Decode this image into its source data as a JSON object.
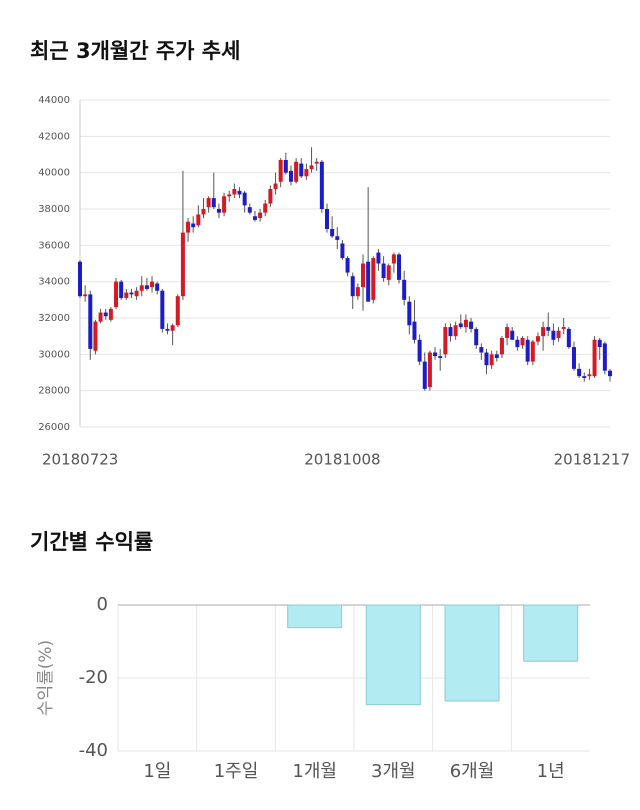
{
  "chart_data": [
    {
      "type": "candlestick",
      "title": "최근 3개월간 주가 추세",
      "categories": [
        "20180723",
        null,
        null,
        null,
        null,
        null,
        null,
        null,
        null,
        null,
        null,
        null,
        null,
        null,
        null,
        null,
        null,
        null,
        null,
        null,
        null,
        null,
        null,
        null,
        null,
        null,
        null,
        null,
        null,
        null,
        null,
        null,
        null,
        null,
        null,
        null,
        null,
        null,
        null,
        null,
        null,
        null,
        null,
        null,
        null,
        null,
        null,
        null,
        null,
        null,
        null,
        "20181008",
        null,
        null,
        null,
        null,
        null,
        null,
        null,
        null,
        null,
        null,
        null,
        null,
        null,
        null,
        null,
        null,
        null,
        null,
        null,
        null,
        null,
        null,
        null,
        null,
        null,
        null,
        null,
        null,
        null,
        null,
        null,
        null,
        null,
        null,
        null,
        null,
        null,
        null,
        null,
        null,
        null,
        null,
        null,
        null,
        null,
        null,
        null,
        null,
        null,
        null,
        null,
        "20181217"
      ],
      "candles": [
        [
          35100,
          35200,
          33100,
          33200
        ],
        [
          33200,
          33800,
          32900,
          33300
        ],
        [
          33300,
          33500,
          29700,
          30300
        ],
        [
          30200,
          31900,
          30000,
          31800
        ],
        [
          31800,
          32500,
          31700,
          32300
        ],
        [
          32300,
          32500,
          31900,
          32100
        ],
        [
          31900,
          32600,
          31800,
          32500
        ],
        [
          32600,
          34200,
          32500,
          34000
        ],
        [
          34000,
          34100,
          33000,
          33100
        ],
        [
          33100,
          33600,
          33000,
          33400
        ],
        [
          33400,
          33600,
          33100,
          33300
        ],
        [
          33200,
          33700,
          33000,
          33500
        ],
        [
          33500,
          34300,
          33200,
          33800
        ],
        [
          33800,
          34200,
          33500,
          33600
        ],
        [
          33700,
          34300,
          33400,
          34000
        ],
        [
          33900,
          34000,
          33300,
          33500
        ],
        [
          33500,
          33600,
          31200,
          31400
        ],
        [
          31400,
          31700,
          31100,
          31300
        ],
        [
          31300,
          31700,
          30500,
          31600
        ],
        [
          31600,
          33300,
          31500,
          33200
        ],
        [
          33200,
          40100,
          33000,
          36700
        ],
        [
          36700,
          37500,
          36200,
          37300
        ],
        [
          37200,
          37600,
          36700,
          37000
        ],
        [
          37100,
          38200,
          37000,
          37700
        ],
        [
          37700,
          38600,
          37500,
          38000
        ],
        [
          38100,
          38700,
          37800,
          38600
        ],
        [
          38600,
          40000,
          38000,
          38100
        ],
        [
          38000,
          38300,
          37500,
          37800
        ],
        [
          37800,
          38900,
          37600,
          38700
        ],
        [
          38700,
          39000,
          38400,
          38800
        ],
        [
          38800,
          39400,
          38600,
          39100
        ],
        [
          39000,
          39200,
          38600,
          38800
        ],
        [
          38900,
          39000,
          37800,
          38200
        ],
        [
          38100,
          38300,
          37700,
          37800
        ],
        [
          37600,
          37900,
          37300,
          37400
        ],
        [
          37500,
          38000,
          37300,
          37800
        ],
        [
          37800,
          38500,
          37600,
          38300
        ],
        [
          38300,
          39300,
          38100,
          39100
        ],
        [
          39100,
          40000,
          38800,
          39400
        ],
        [
          39500,
          40800,
          39200,
          40700
        ],
        [
          40700,
          41100,
          39900,
          40000
        ],
        [
          40100,
          40400,
          39300,
          39500
        ],
        [
          39500,
          40800,
          39400,
          40600
        ],
        [
          40500,
          40800,
          39700,
          39800
        ],
        [
          39800,
          40500,
          39600,
          40200
        ],
        [
          40200,
          41400,
          40000,
          40400
        ],
        [
          40500,
          40800,
          40100,
          40600
        ],
        [
          40600,
          40700,
          37800,
          38000
        ],
        [
          38000,
          38300,
          36700,
          36900
        ],
        [
          36900,
          37600,
          36400,
          36500
        ],
        [
          36500,
          37000,
          35800,
          36300
        ],
        [
          36100,
          36300,
          35200,
          35300
        ],
        [
          35300,
          35400,
          34300,
          34500
        ],
        [
          34300,
          34500,
          32500,
          33200
        ],
        [
          33200,
          33900,
          33000,
          33700
        ],
        [
          33700,
          35500,
          32400,
          35000
        ],
        [
          35100,
          39200,
          32900,
          32900
        ],
        [
          33000,
          35400,
          32800,
          35300
        ],
        [
          35600,
          35800,
          34600,
          35000
        ],
        [
          35000,
          35400,
          34000,
          34200
        ],
        [
          34100,
          35000,
          33800,
          34900
        ],
        [
          35000,
          35600,
          34500,
          35500
        ],
        [
          35500,
          35600,
          33900,
          34100
        ],
        [
          34100,
          34600,
          32700,
          33000
        ],
        [
          32900,
          33200,
          31100,
          31600
        ],
        [
          31800,
          33000,
          30600,
          30800
        ],
        [
          30800,
          31100,
          29400,
          29600
        ],
        [
          29600,
          30100,
          28000,
          28100
        ],
        [
          28200,
          30200,
          28000,
          30100
        ],
        [
          30100,
          30400,
          29700,
          29900
        ],
        [
          29900,
          30300,
          29100,
          29800
        ],
        [
          30000,
          31700,
          29800,
          31500
        ],
        [
          31500,
          31700,
          30700,
          31000
        ],
        [
          31000,
          31800,
          30800,
          31600
        ],
        [
          31700,
          32200,
          31400,
          31500
        ],
        [
          31500,
          32200,
          31200,
          31900
        ],
        [
          31800,
          32000,
          31200,
          31400
        ],
        [
          31400,
          31500,
          30300,
          30500
        ],
        [
          30400,
          30600,
          29700,
          30100
        ],
        [
          30100,
          30300,
          28900,
          29400
        ],
        [
          29400,
          30200,
          29200,
          30000
        ],
        [
          30000,
          30200,
          29600,
          29800
        ],
        [
          30000,
          31000,
          29800,
          30900
        ],
        [
          30900,
          31700,
          30500,
          31500
        ],
        [
          31300,
          31500,
          30800,
          30800
        ],
        [
          30800,
          31000,
          30200,
          30400
        ],
        [
          30500,
          31000,
          30300,
          30900
        ],
        [
          30800,
          31000,
          29400,
          29600
        ],
        [
          29600,
          30800,
          29400,
          30700
        ],
        [
          30700,
          31200,
          30500,
          31000
        ],
        [
          31000,
          31800,
          30200,
          31500
        ],
        [
          31500,
          32300,
          31000,
          31300
        ],
        [
          31300,
          31700,
          30500,
          30800
        ],
        [
          30900,
          31500,
          30700,
          31300
        ],
        [
          31400,
          32000,
          31100,
          31500
        ],
        [
          31400,
          31500,
          30300,
          30400
        ],
        [
          30400,
          30700,
          29100,
          29200
        ],
        [
          29200,
          29500,
          28700,
          28800
        ],
        [
          28800,
          29000,
          28500,
          28700
        ],
        [
          28800,
          29200,
          28600,
          28900
        ],
        [
          28800,
          31000,
          28700,
          30800
        ],
        [
          30800,
          30900,
          29700,
          30400
        ],
        [
          30600,
          30700,
          28900,
          29100
        ],
        [
          29100,
          29200,
          28500,
          28800
        ]
      ],
      "up_color": "#d71921",
      "down_color": "#1c1cc8",
      "ylim": [
        26000,
        44000
      ],
      "yticks": [
        26000,
        28000,
        30000,
        32000,
        34000,
        36000,
        38000,
        40000,
        42000,
        44000
      ],
      "grid": true
    },
    {
      "type": "bar",
      "title": "기간별 수익률",
      "ylabel": "수익률(%)",
      "categories": [
        "1일",
        "1주일",
        "1개월",
        "3개월",
        "6개월",
        "1년"
      ],
      "values": [
        0,
        0,
        -6.2,
        -27.3,
        -26.3,
        -15.4
      ],
      "color": "#b2ebf2",
      "ylim": [
        -40,
        0
      ],
      "yticks": [
        0,
        -20,
        -40
      ],
      "grid": true
    }
  ]
}
